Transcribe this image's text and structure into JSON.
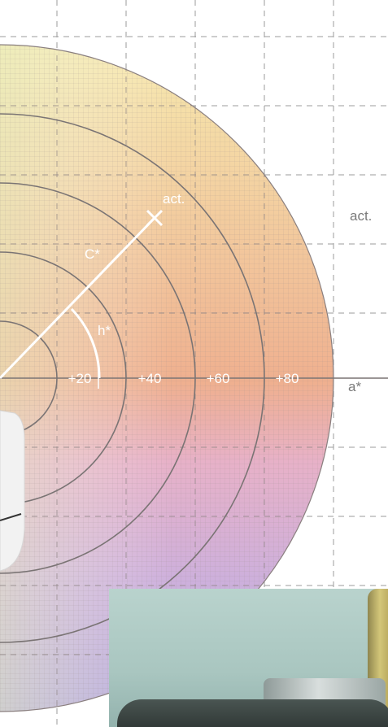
{
  "diagram": {
    "tick_labels": [
      "+20",
      "+40",
      "+60",
      "+80"
    ],
    "a_axis_label": "a*",
    "chroma_label": "C*",
    "hue_label": "h*",
    "vector_label": "act.",
    "side_label": "act."
  },
  "colors": {
    "wheel_yellow": "#f4e3a8",
    "wheel_orange": "#f0ab8a",
    "wheel_pink": "#e6b2cf",
    "wheel_violet": "#b7a7dc",
    "grid": "#8a8a8a",
    "circle": "#777777"
  },
  "photo": {
    "description_icon": "colorimeter-device-icon"
  }
}
